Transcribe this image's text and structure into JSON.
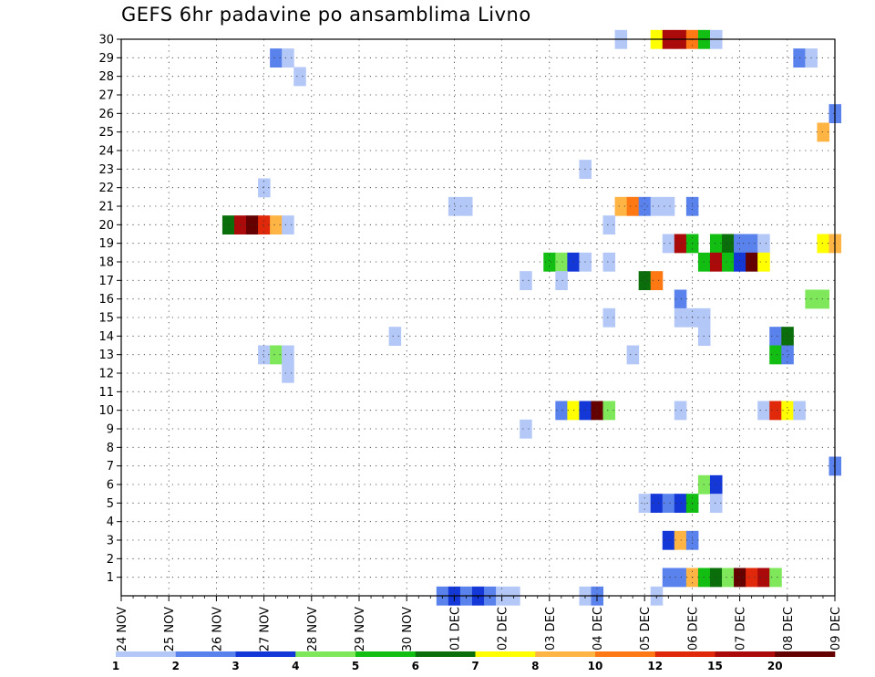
{
  "chart_data": {
    "type": "heatmap",
    "title": "GEFS 6hr padavine po ansamblima Livno",
    "xlabel": "",
    "ylabel": "",
    "x_tick_labels": [
      "24 NOV",
      "25 NOV",
      "26 NOV",
      "27 NOV",
      "28 NOV",
      "29 NOV",
      "30 NOV",
      "01 DEC",
      "02 DEC",
      "03 DEC",
      "04 DEC",
      "05 DEC",
      "06 DEC",
      "07 DEC",
      "08 DEC",
      "09 DEC"
    ],
    "y_tick_labels": [
      "1",
      "2",
      "3",
      "4",
      "5",
      "6",
      "7",
      "8",
      "9",
      "10",
      "11",
      "12",
      "13",
      "14",
      "15",
      "16",
      "17",
      "18",
      "19",
      "20",
      "21",
      "22",
      "23",
      "24",
      "25",
      "26",
      "27",
      "28",
      "29",
      "30"
    ],
    "x_unit": "6-hour steps from 24 NOV 00Z",
    "x_range": [
      0,
      60
    ],
    "y_range": [
      0,
      30
    ],
    "grid": true,
    "color_scale": {
      "bounds": [
        "1",
        "2",
        "3",
        "4",
        "5",
        "6",
        "7",
        "8",
        "10",
        "12",
        "15",
        "20"
      ],
      "colors": [
        "#b4c8f8",
        "#5a82ec",
        "#1438d8",
        "#7ee85a",
        "#12be12",
        "#0a6e0a",
        "#ffff00",
        "#ffb444",
        "#ff7814",
        "#e0280a",
        "#aa0a0a",
        "#640000"
      ]
    },
    "cells": [
      {
        "x": 42,
        "y": 30,
        "c": 0
      },
      {
        "x": 45,
        "y": 30,
        "c": 6
      },
      {
        "x": 46,
        "y": 30,
        "c": 10
      },
      {
        "x": 47,
        "y": 30,
        "c": 10
      },
      {
        "x": 48,
        "y": 30,
        "c": 8
      },
      {
        "x": 49,
        "y": 30,
        "c": 4
      },
      {
        "x": 50,
        "y": 30,
        "c": 0
      },
      {
        "x": 13,
        "y": 29,
        "c": 1
      },
      {
        "x": 14,
        "y": 29,
        "c": 0
      },
      {
        "x": 57,
        "y": 29,
        "c": 1
      },
      {
        "x": 58,
        "y": 29,
        "c": 0
      },
      {
        "x": 15,
        "y": 28,
        "c": 0
      },
      {
        "x": 60,
        "y": 26,
        "c": 1
      },
      {
        "x": 59,
        "y": 25,
        "c": 7
      },
      {
        "x": 39,
        "y": 23,
        "c": 0
      },
      {
        "x": 12,
        "y": 22,
        "c": 0
      },
      {
        "x": 28,
        "y": 21,
        "c": 0
      },
      {
        "x": 29,
        "y": 21,
        "c": 0
      },
      {
        "x": 42,
        "y": 21,
        "c": 7
      },
      {
        "x": 43,
        "y": 21,
        "c": 8
      },
      {
        "x": 44,
        "y": 21,
        "c": 1
      },
      {
        "x": 45,
        "y": 21,
        "c": 0
      },
      {
        "x": 46,
        "y": 21,
        "c": 0
      },
      {
        "x": 48,
        "y": 21,
        "c": 1
      },
      {
        "x": 9,
        "y": 20,
        "c": 5
      },
      {
        "x": 10,
        "y": 20,
        "c": 10
      },
      {
        "x": 11,
        "y": 20,
        "c": 11
      },
      {
        "x": 12,
        "y": 20,
        "c": 9
      },
      {
        "x": 13,
        "y": 20,
        "c": 7
      },
      {
        "x": 14,
        "y": 20,
        "c": 0
      },
      {
        "x": 41,
        "y": 20,
        "c": 0
      },
      {
        "x": 46,
        "y": 19,
        "c": 0
      },
      {
        "x": 47,
        "y": 19,
        "c": 10
      },
      {
        "x": 48,
        "y": 19,
        "c": 4
      },
      {
        "x": 50,
        "y": 19,
        "c": 4
      },
      {
        "x": 51,
        "y": 19,
        "c": 5
      },
      {
        "x": 52,
        "y": 19,
        "c": 1
      },
      {
        "x": 53,
        "y": 19,
        "c": 1
      },
      {
        "x": 54,
        "y": 19,
        "c": 0
      },
      {
        "x": 59,
        "y": 19,
        "c": 6
      },
      {
        "x": 60,
        "y": 19,
        "c": 7
      },
      {
        "x": 36,
        "y": 18,
        "c": 4
      },
      {
        "x": 37,
        "y": 18,
        "c": 3
      },
      {
        "x": 38,
        "y": 18,
        "c": 2
      },
      {
        "x": 39,
        "y": 18,
        "c": 0
      },
      {
        "x": 41,
        "y": 18,
        "c": 0
      },
      {
        "x": 49,
        "y": 18,
        "c": 4
      },
      {
        "x": 50,
        "y": 18,
        "c": 10
      },
      {
        "x": 51,
        "y": 18,
        "c": 4
      },
      {
        "x": 52,
        "y": 18,
        "c": 2
      },
      {
        "x": 53,
        "y": 18,
        "c": 11
      },
      {
        "x": 54,
        "y": 18,
        "c": 6
      },
      {
        "x": 34,
        "y": 17,
        "c": 0
      },
      {
        "x": 37,
        "y": 17,
        "c": 0
      },
      {
        "x": 44,
        "y": 17,
        "c": 5
      },
      {
        "x": 45,
        "y": 17,
        "c": 8
      },
      {
        "x": 47,
        "y": 16,
        "c": 1
      },
      {
        "x": 58,
        "y": 16,
        "c": 3
      },
      {
        "x": 59,
        "y": 16,
        "c": 3
      },
      {
        "x": 41,
        "y": 15,
        "c": 0
      },
      {
        "x": 47,
        "y": 15,
        "c": 0
      },
      {
        "x": 48,
        "y": 15,
        "c": 0
      },
      {
        "x": 49,
        "y": 15,
        "c": 0
      },
      {
        "x": 23,
        "y": 14,
        "c": 0
      },
      {
        "x": 49,
        "y": 14,
        "c": 0
      },
      {
        "x": 55,
        "y": 14,
        "c": 1
      },
      {
        "x": 56,
        "y": 14,
        "c": 5
      },
      {
        "x": 12,
        "y": 13,
        "c": 0
      },
      {
        "x": 13,
        "y": 13,
        "c": 3
      },
      {
        "x": 14,
        "y": 13,
        "c": 0
      },
      {
        "x": 43,
        "y": 13,
        "c": 0
      },
      {
        "x": 55,
        "y": 13,
        "c": 4
      },
      {
        "x": 56,
        "y": 13,
        "c": 1
      },
      {
        "x": 14,
        "y": 12,
        "c": 0
      },
      {
        "x": 37,
        "y": 10,
        "c": 1
      },
      {
        "x": 38,
        "y": 10,
        "c": 6
      },
      {
        "x": 39,
        "y": 10,
        "c": 2
      },
      {
        "x": 40,
        "y": 10,
        "c": 11
      },
      {
        "x": 41,
        "y": 10,
        "c": 3
      },
      {
        "x": 47,
        "y": 10,
        "c": 0
      },
      {
        "x": 54,
        "y": 10,
        "c": 0
      },
      {
        "x": 55,
        "y": 10,
        "c": 9
      },
      {
        "x": 56,
        "y": 10,
        "c": 6
      },
      {
        "x": 57,
        "y": 10,
        "c": 0
      },
      {
        "x": 34,
        "y": 9,
        "c": 0
      },
      {
        "x": 60,
        "y": 7,
        "c": 1
      },
      {
        "x": 49,
        "y": 6,
        "c": 3
      },
      {
        "x": 50,
        "y": 6,
        "c": 2
      },
      {
        "x": 44,
        "y": 5,
        "c": 0
      },
      {
        "x": 45,
        "y": 5,
        "c": 2
      },
      {
        "x": 46,
        "y": 5,
        "c": 1
      },
      {
        "x": 47,
        "y": 5,
        "c": 2
      },
      {
        "x": 48,
        "y": 5,
        "c": 4
      },
      {
        "x": 50,
        "y": 5,
        "c": 0
      },
      {
        "x": 46,
        "y": 3,
        "c": 2
      },
      {
        "x": 47,
        "y": 3,
        "c": 7
      },
      {
        "x": 48,
        "y": 3,
        "c": 1
      },
      {
        "x": 46,
        "y": 1,
        "c": 1
      },
      {
        "x": 47,
        "y": 1,
        "c": 1
      },
      {
        "x": 48,
        "y": 1,
        "c": 7
      },
      {
        "x": 49,
        "y": 1,
        "c": 4
      },
      {
        "x": 50,
        "y": 1,
        "c": 5
      },
      {
        "x": 51,
        "y": 1,
        "c": 3
      },
      {
        "x": 52,
        "y": 1,
        "c": 11
      },
      {
        "x": 53,
        "y": 1,
        "c": 9
      },
      {
        "x": 54,
        "y": 1,
        "c": 10
      },
      {
        "x": 55,
        "y": 1,
        "c": 3
      },
      {
        "x": 27,
        "y": 0,
        "c": 1
      },
      {
        "x": 28,
        "y": 0,
        "c": 2
      },
      {
        "x": 29,
        "y": 0,
        "c": 1
      },
      {
        "x": 30,
        "y": 0,
        "c": 2
      },
      {
        "x": 31,
        "y": 0,
        "c": 1
      },
      {
        "x": 32,
        "y": 0,
        "c": 0
      },
      {
        "x": 33,
        "y": 0,
        "c": 0
      },
      {
        "x": 39,
        "y": 0,
        "c": 0
      },
      {
        "x": 40,
        "y": 0,
        "c": 1
      },
      {
        "x": 45,
        "y": 0,
        "c": 0
      }
    ]
  }
}
